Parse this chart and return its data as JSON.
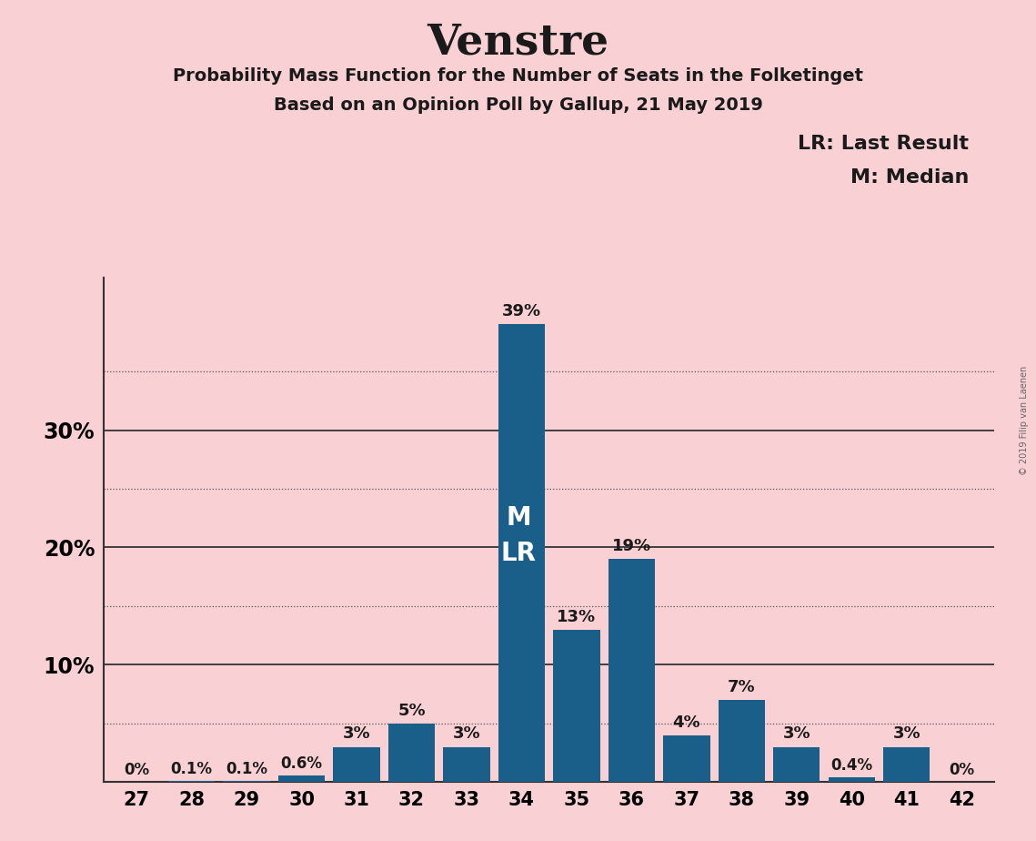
{
  "title": "Venstre",
  "subtitle1": "Probability Mass Function for the Number of Seats in the Folketinget",
  "subtitle2": "Based on an Opinion Poll by Gallup, 21 May 2019",
  "watermark": "© 2019 Filip van Laenen",
  "categories": [
    27,
    28,
    29,
    30,
    31,
    32,
    33,
    34,
    35,
    36,
    37,
    38,
    39,
    40,
    41,
    42
  ],
  "values": [
    0.0,
    0.1,
    0.1,
    0.6,
    3.0,
    5.0,
    3.0,
    39.0,
    13.0,
    19.0,
    4.0,
    7.0,
    3.0,
    0.4,
    3.0,
    0.0
  ],
  "labels": [
    "0%",
    "0.1%",
    "0.1%",
    "0.6%",
    "3%",
    "5%",
    "3%",
    "39%",
    "13%",
    "19%",
    "4%",
    "7%",
    "3%",
    "0.4%",
    "3%",
    "0%"
  ],
  "bar_color": "#1a5f8a",
  "background_color": "#f9d0d4",
  "median_seat": 34,
  "last_result_seat": 34,
  "legend_line1": "LR: Last Result",
  "legend_line2": "M: Median",
  "ytick_labels": [
    "",
    "10%",
    "20%",
    "30%"
  ],
  "ytick_positions": [
    0,
    10,
    20,
    30
  ],
  "ylim_max": 43,
  "dotted_yticks": [
    5,
    15,
    25,
    35
  ],
  "solid_yticks": [
    10,
    20,
    30
  ]
}
